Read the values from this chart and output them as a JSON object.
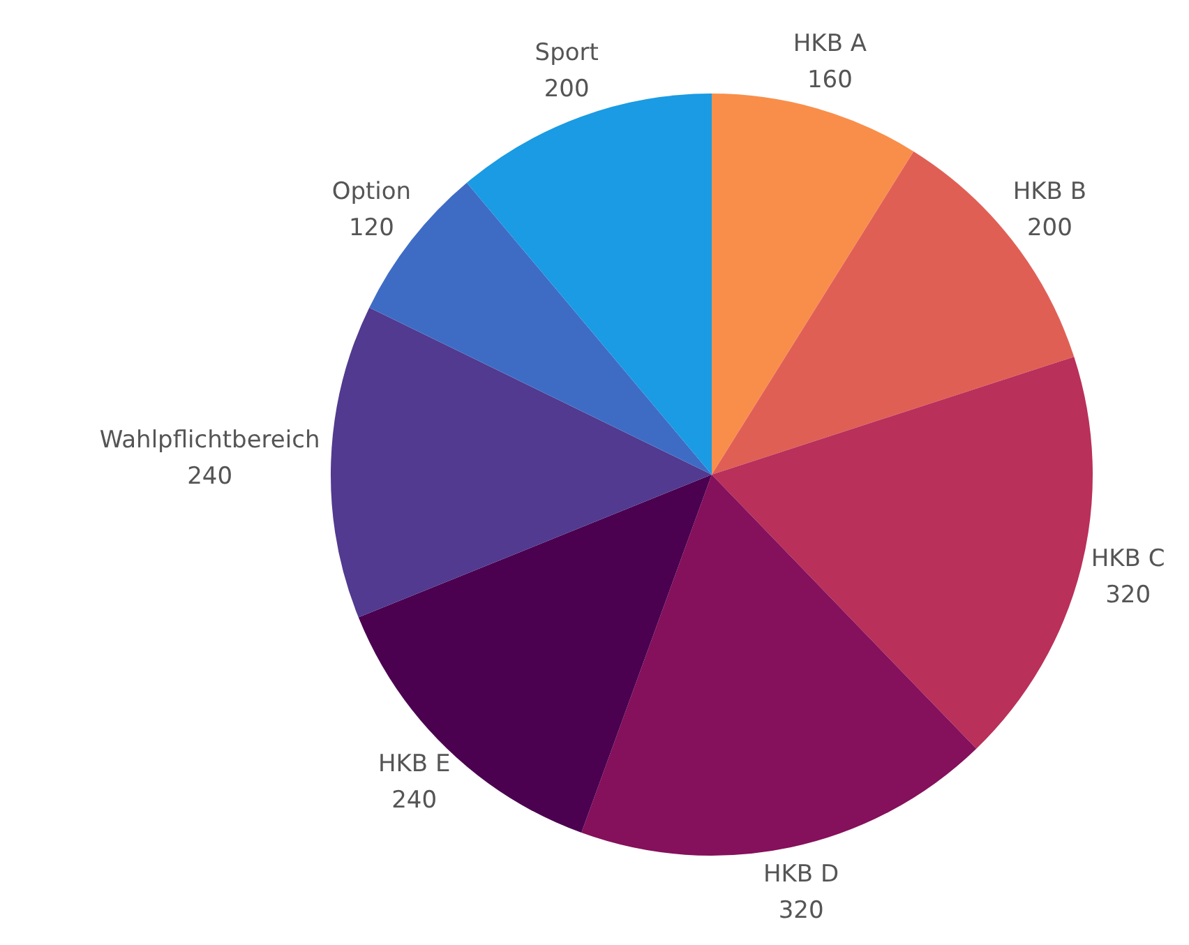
{
  "chart_data": {
    "type": "pie",
    "categories": [
      "HKB A",
      "HKB B",
      "HKB C",
      "HKB D",
      "HKB E",
      "Wahlpflichtbereich",
      "Option",
      "Sport"
    ],
    "values": [
      160,
      200,
      320,
      320,
      240,
      240,
      120,
      200
    ],
    "colors": [
      "#f98e4a",
      "#e05f55",
      "#b9305a",
      "#85105b",
      "#4b0050",
      "#513a8f",
      "#3e6cc5",
      "#1a9be3"
    ],
    "data_labels": true,
    "legend": false
  }
}
